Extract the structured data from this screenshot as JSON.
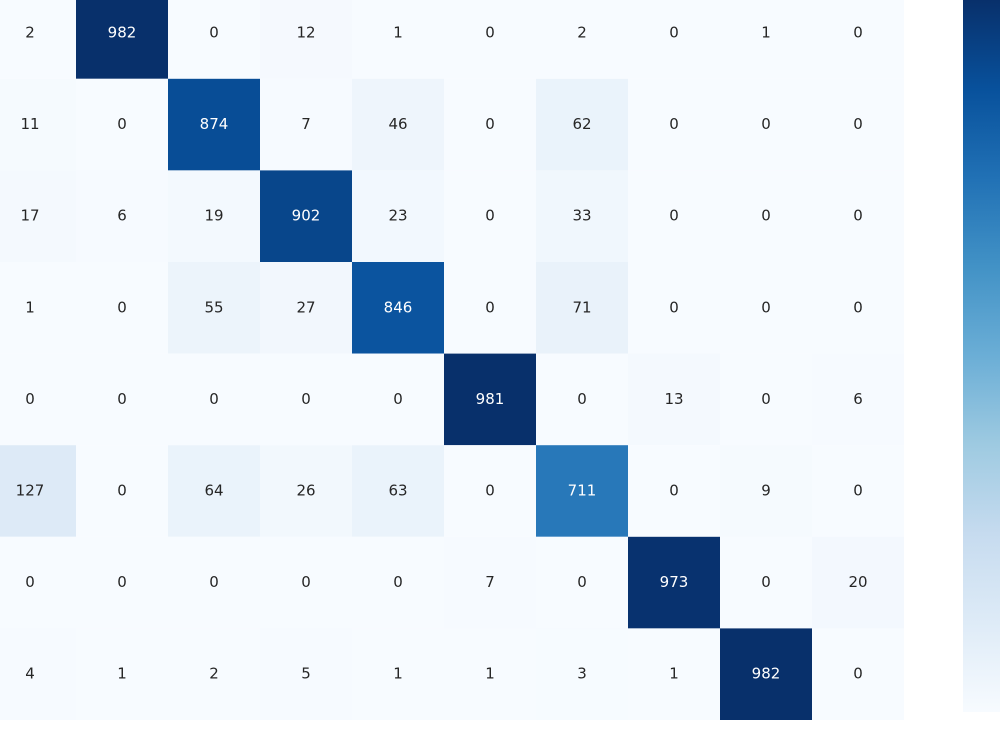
{
  "chart_data": {
    "type": "heatmap",
    "values": [
      [
        2,
        982,
        0,
        12,
        1,
        0,
        2,
        0,
        1,
        0
      ],
      [
        11,
        0,
        874,
        7,
        46,
        0,
        62,
        0,
        0,
        0
      ],
      [
        17,
        6,
        19,
        902,
        23,
        0,
        33,
        0,
        0,
        0
      ],
      [
        1,
        0,
        55,
        27,
        846,
        0,
        71,
        0,
        0,
        0
      ],
      [
        0,
        0,
        0,
        0,
        0,
        981,
        0,
        13,
        0,
        6
      ],
      [
        127,
        0,
        64,
        26,
        63,
        0,
        711,
        0,
        9,
        0
      ],
      [
        0,
        0,
        0,
        0,
        0,
        7,
        0,
        973,
        0,
        20
      ],
      [
        4,
        1,
        2,
        5,
        1,
        1,
        3,
        1,
        982,
        0
      ]
    ],
    "zlim": [
      0,
      982
    ],
    "colors": [
      "#f7fbff",
      "#deebf7",
      "#c6dbef",
      "#9ecae1",
      "#6baed6",
      "#4292c6",
      "#2171b5",
      "#08519c",
      "#08306b"
    ],
    "colorbar": true
  }
}
